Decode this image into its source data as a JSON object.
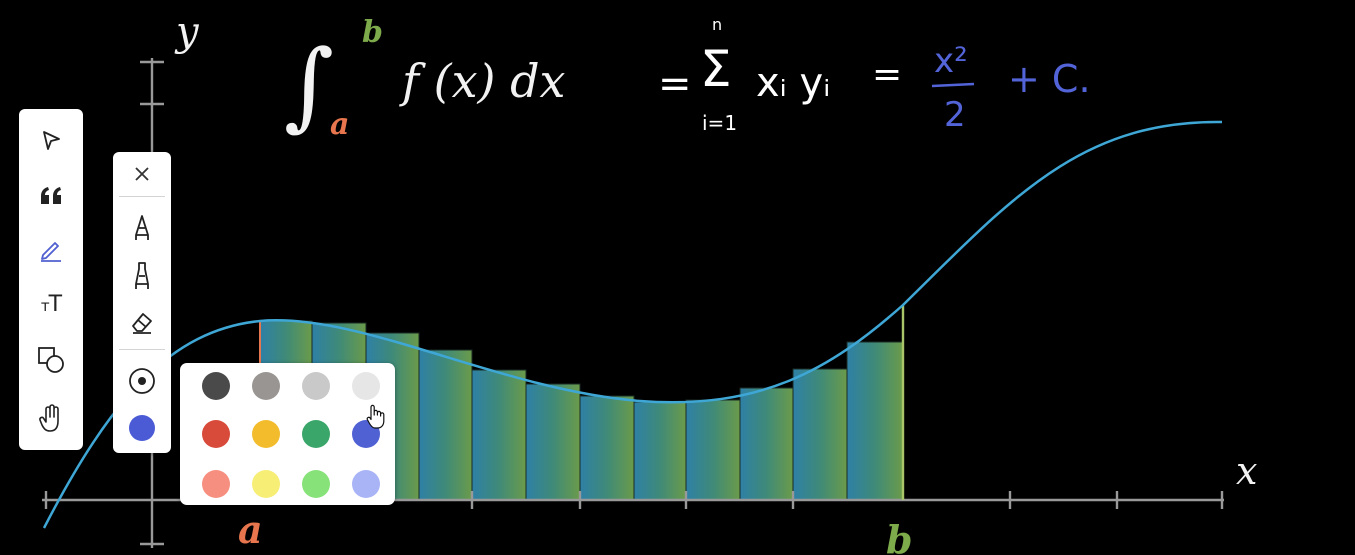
{
  "formula": {
    "integral_sign": "∫",
    "upper_limit": "b",
    "lower_limit": "a",
    "integrand": "f (x) dx",
    "equals": "=",
    "sum_sign": "Σ",
    "sum_upper": "n",
    "sum_lower": "i=1",
    "sum_body": "xᵢ yᵢ",
    "equals2": "=",
    "frac_num": "x²",
    "frac_den": "2",
    "plus_c": "+ C."
  },
  "axes": {
    "x_label": "x",
    "y_label": "y",
    "a_label": "a",
    "b_label": "b"
  },
  "colors": {
    "curve": "#3fa7d6",
    "a_color": "#e7754e",
    "b_color": "#7daa4a",
    "handwriting_white": "#ffffff",
    "handwriting_blue": "#5364d9",
    "active_tool": "#5060d0"
  },
  "toolbar": {
    "tools": [
      {
        "name": "select",
        "icon": "pointer-arrow-icon"
      },
      {
        "name": "quote",
        "icon": "quote-icon"
      },
      {
        "name": "pen",
        "icon": "pencil-icon",
        "active": true
      },
      {
        "name": "text",
        "icon": "text-size-icon",
        "label": "тT"
      },
      {
        "name": "shapes",
        "icon": "shapes-icon"
      },
      {
        "name": "pan",
        "icon": "hand-icon"
      }
    ]
  },
  "subpanel": {
    "items": [
      {
        "name": "close",
        "icon": "close-icon"
      },
      {
        "name": "pen",
        "icon": "pen-nib-icon"
      },
      {
        "name": "marker",
        "icon": "highlighter-icon"
      },
      {
        "name": "eraser",
        "icon": "eraser-icon"
      },
      {
        "name": "stroke-size",
        "icon": "stroke-size-icon"
      },
      {
        "name": "current-color",
        "icon": "color-dot-icon",
        "color": "#4b5bd6"
      }
    ]
  },
  "palette": {
    "colors": [
      [
        "#4a4a4a",
        "#999592",
        "#c9c9c9",
        "#e6e6e6"
      ],
      [
        "#d84a3a",
        "#f2bc2d",
        "#3aa66a",
        "#5061d4"
      ],
      [
        "#f68f80",
        "#f7ee75",
        "#88e27a",
        "#a9b4f7"
      ]
    ]
  }
}
